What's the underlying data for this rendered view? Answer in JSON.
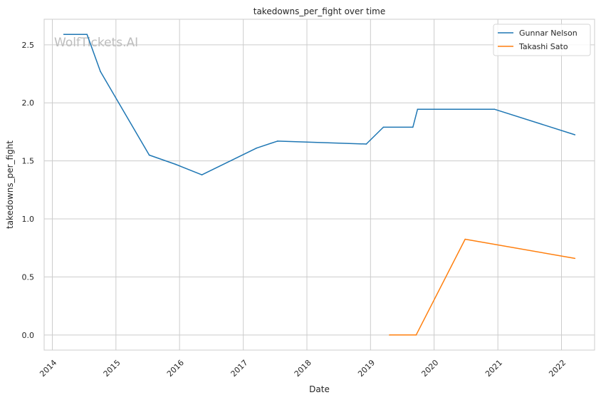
{
  "chart_data": {
    "type": "line",
    "title": "takedowns_per_fight over time",
    "xlabel": "Date",
    "ylabel": "takedowns_per_fight",
    "x_ticks": [
      "2014",
      "2015",
      "2016",
      "2017",
      "2018",
      "2019",
      "2020",
      "2021",
      "2022"
    ],
    "y_ticks": [
      "0.0",
      "0.5",
      "1.0",
      "1.5",
      "2.0",
      "2.5"
    ],
    "xlim": [
      "2013-11-15",
      "2022-07-10"
    ],
    "ylim": [
      -0.13,
      2.72
    ],
    "grid": true,
    "legend_position": "top-right",
    "watermark": "WolfTickets.AI",
    "series": [
      {
        "name": "Gunnar Nelson",
        "color": "#1f77b4",
        "points": [
          {
            "x": "2014-03-08",
            "y": 2.59
          },
          {
            "x": "2014-07-19",
            "y": 2.59
          },
          {
            "x": "2014-10-04",
            "y": 2.27
          },
          {
            "x": "2015-07-11",
            "y": 1.55
          },
          {
            "x": "2015-12-10",
            "y": 1.47
          },
          {
            "x": "2016-05-08",
            "y": 1.38
          },
          {
            "x": "2017-03-18",
            "y": 1.61
          },
          {
            "x": "2017-07-16",
            "y": 1.67
          },
          {
            "x": "2018-12-08",
            "y": 1.645
          },
          {
            "x": "2019-03-16",
            "y": 1.79
          },
          {
            "x": "2019-09-01",
            "y": 1.79
          },
          {
            "x": "2019-09-28",
            "y": 1.945
          },
          {
            "x": "2020-12-12",
            "y": 1.945
          },
          {
            "x": "2022-03-19",
            "y": 1.725
          }
        ]
      },
      {
        "name": "Takashi Sato",
        "color": "#ff7f0e",
        "points": [
          {
            "x": "2019-04-20",
            "y": 0.0
          },
          {
            "x": "2019-09-20",
            "y": 0.0
          },
          {
            "x": "2020-06-27",
            "y": 0.825
          },
          {
            "x": "2022-03-19",
            "y": 0.66
          }
        ]
      }
    ]
  }
}
